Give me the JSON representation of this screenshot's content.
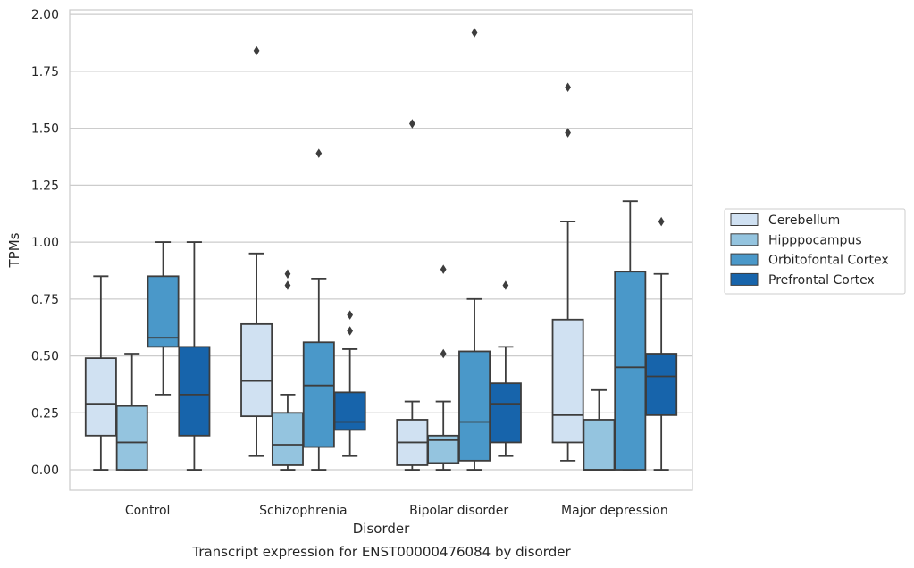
{
  "chart_data": {
    "type": "box",
    "title": "",
    "caption": "Transcript expression for ENST00000476084 by disorder",
    "xlabel": "Disorder",
    "ylabel": "TPMs",
    "ylim": [
      -0.09,
      2.02
    ],
    "yticks": [
      "0.00",
      "0.25",
      "0.50",
      "0.75",
      "1.00",
      "1.25",
      "1.50",
      "1.75",
      "2.00"
    ],
    "grid": "horizontal",
    "legend_position": "right",
    "categories": [
      "Control",
      "Schizophrenia",
      "Bipolar disorder",
      "Major depression"
    ],
    "series": [
      {
        "name": "Cerebellum",
        "color": "#d0e1f2",
        "boxes": [
          {
            "min": 0.0,
            "q1": 0.15,
            "median": 0.29,
            "q3": 0.49,
            "max": 0.85,
            "outliers": []
          },
          {
            "min": 0.06,
            "q1": 0.235,
            "median": 0.39,
            "q3": 0.64,
            "max": 0.95,
            "outliers": [
              1.84
            ]
          },
          {
            "min": 0.0,
            "q1": 0.02,
            "median": 0.12,
            "q3": 0.22,
            "max": 0.3,
            "outliers": [
              1.52
            ]
          },
          {
            "min": 0.04,
            "q1": 0.12,
            "median": 0.24,
            "q3": 0.66,
            "max": 1.09,
            "outliers": [
              1.48,
              1.68
            ]
          }
        ]
      },
      {
        "name": "Hipppocampus",
        "color": "#94c4df",
        "boxes": [
          {
            "min": 0.0,
            "q1": 0.0,
            "median": 0.12,
            "q3": 0.28,
            "max": 0.51,
            "outliers": []
          },
          {
            "min": 0.0,
            "q1": 0.02,
            "median": 0.11,
            "q3": 0.25,
            "max": 0.33,
            "outliers": [
              0.81,
              0.86
            ]
          },
          {
            "min": 0.0,
            "q1": 0.03,
            "median": 0.13,
            "q3": 0.15,
            "max": 0.3,
            "outliers": [
              0.51,
              0.88
            ]
          },
          {
            "min": 0.0,
            "q1": 0.0,
            "median": 0.0,
            "q3": 0.22,
            "max": 0.35,
            "outliers": []
          }
        ]
      },
      {
        "name": "Orbitofontal Cortex",
        "color": "#4a98c9",
        "boxes": [
          {
            "min": 0.33,
            "q1": 0.54,
            "median": 0.58,
            "q3": 0.85,
            "max": 1.0,
            "outliers": []
          },
          {
            "min": 0.0,
            "q1": 0.1,
            "median": 0.37,
            "q3": 0.56,
            "max": 0.84,
            "outliers": [
              1.39
            ]
          },
          {
            "min": 0.0,
            "q1": 0.04,
            "median": 0.21,
            "q3": 0.52,
            "max": 0.75,
            "outliers": [
              1.92
            ]
          },
          {
            "min": 0.0,
            "q1": 0.0,
            "median": 0.45,
            "q3": 0.87,
            "max": 1.18,
            "outliers": []
          }
        ]
      },
      {
        "name": "Prefrontal Cortex",
        "color": "#1764ab",
        "boxes": [
          {
            "min": 0.0,
            "q1": 0.15,
            "median": 0.33,
            "q3": 0.54,
            "max": 1.0,
            "outliers": []
          },
          {
            "min": 0.06,
            "q1": 0.175,
            "median": 0.21,
            "q3": 0.34,
            "max": 0.53,
            "outliers": [
              0.61,
              0.68
            ]
          },
          {
            "min": 0.06,
            "q1": 0.12,
            "median": 0.29,
            "q3": 0.38,
            "max": 0.54,
            "outliers": [
              0.81
            ]
          },
          {
            "min": 0.0,
            "q1": 0.24,
            "median": 0.41,
            "q3": 0.51,
            "max": 0.86,
            "outliers": [
              1.09
            ]
          }
        ]
      }
    ]
  }
}
